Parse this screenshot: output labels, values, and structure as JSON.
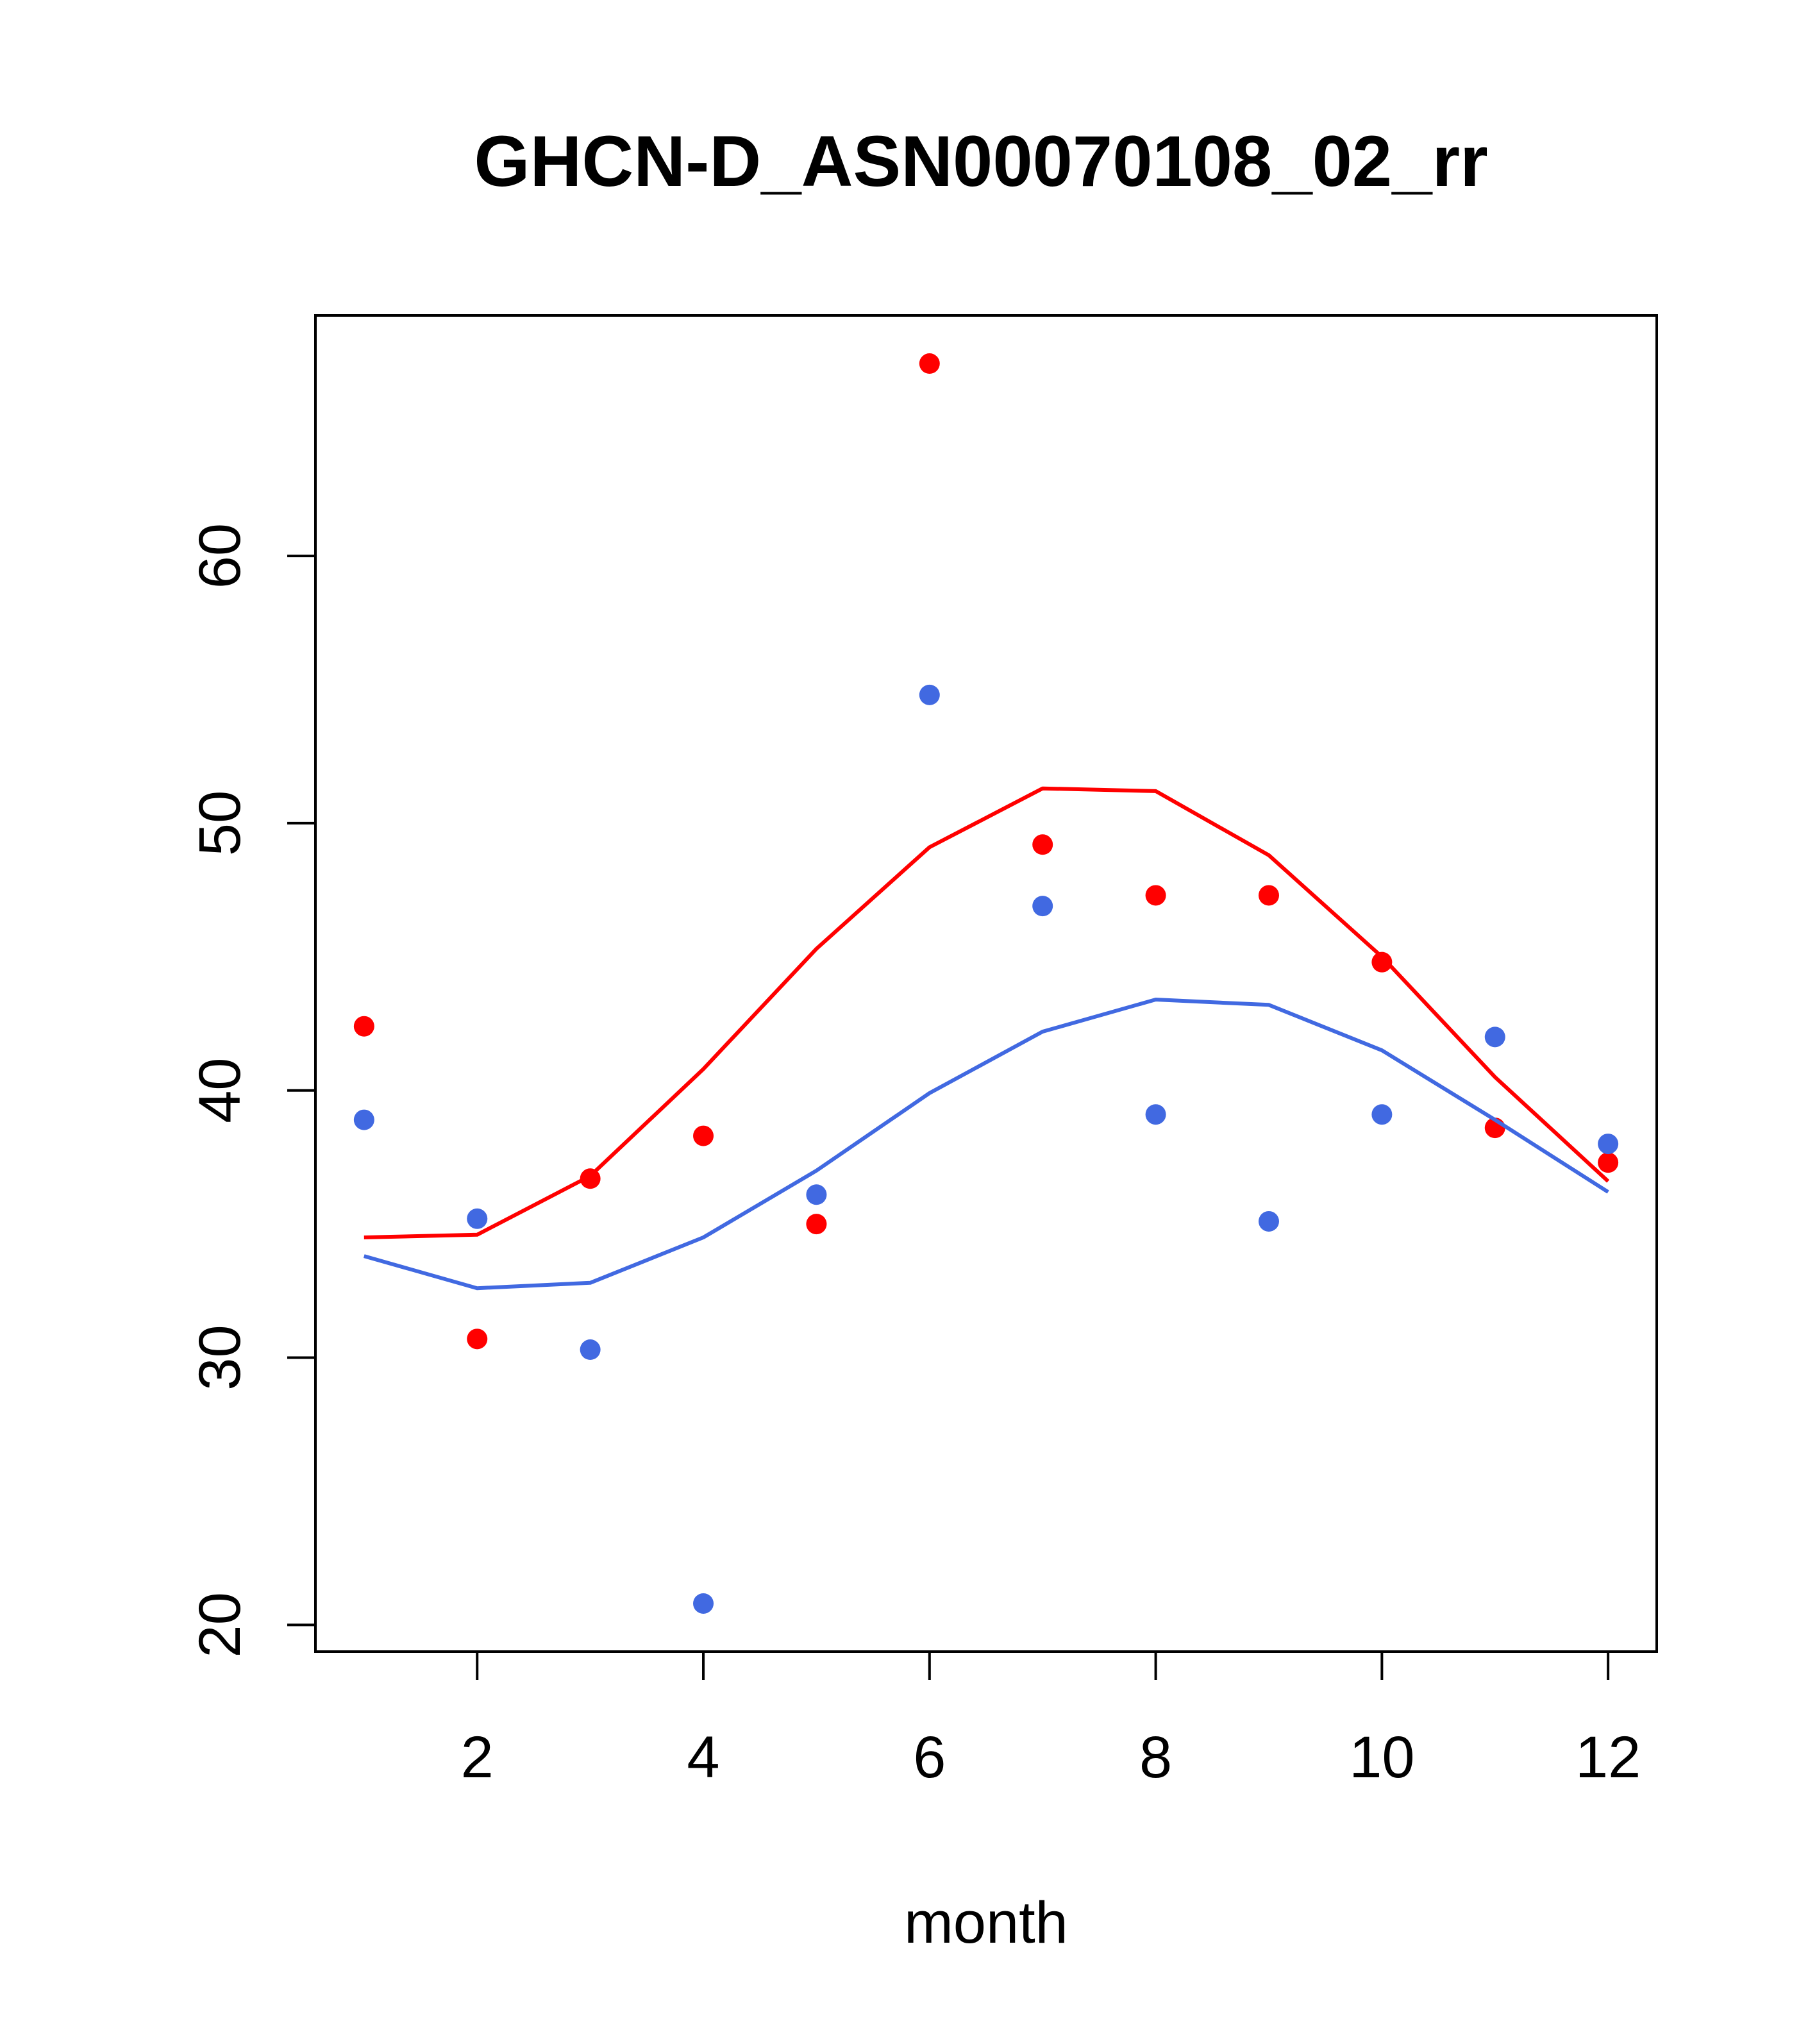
{
  "chart_data": {
    "type": "scatter",
    "title": "GHCN-D_ASN00070108_02_rr",
    "xlabel": "month",
    "ylabel": "",
    "xlim": [
      0.57,
      12.43
    ],
    "ylim": [
      19,
      69
    ],
    "x_ticks": [
      2,
      4,
      6,
      8,
      10,
      12
    ],
    "y_ticks": [
      20,
      30,
      40,
      50,
      60
    ],
    "grid": false,
    "legend": "none",
    "series": [
      {
        "color": "#ff0000",
        "points": {
          "x": [
            1,
            2,
            3,
            4,
            5,
            6,
            7,
            8,
            9,
            10,
            11,
            12
          ],
          "y": [
            42.4,
            30.7,
            36.7,
            38.3,
            35.0,
            67.2,
            49.2,
            47.3,
            47.3,
            44.8,
            38.6,
            37.3
          ]
        },
        "line": {
          "x": [
            1,
            2,
            3,
            4,
            5,
            6,
            7,
            8,
            9,
            10,
            11,
            12
          ],
          "y": [
            34.5,
            34.6,
            36.8,
            40.8,
            45.3,
            49.1,
            51.3,
            51.2,
            48.8,
            45.0,
            40.5,
            36.6
          ]
        }
      },
      {
        "color": "#4169e1",
        "points": {
          "x": [
            1,
            2,
            3,
            4,
            5,
            6,
            7,
            8,
            9,
            10,
            11,
            12
          ],
          "y": [
            38.9,
            35.2,
            30.3,
            20.8,
            36.1,
            54.8,
            46.9,
            39.1,
            35.1,
            39.1,
            42.0,
            38.0
          ]
        },
        "line": {
          "x": [
            1,
            2,
            3,
            4,
            5,
            6,
            7,
            8,
            9,
            10,
            11,
            12
          ],
          "y": [
            33.8,
            32.6,
            32.8,
            34.5,
            37.0,
            39.9,
            42.2,
            43.4,
            43.2,
            41.5,
            38.9,
            36.2
          ]
        }
      }
    ]
  }
}
